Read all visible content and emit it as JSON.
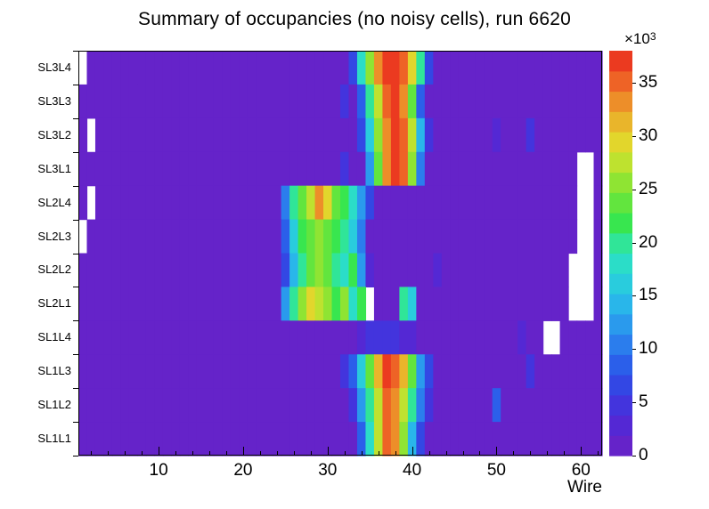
{
  "title": "Summary of occupancies (no noisy cells), run 6620",
  "axes": {
    "x_label": "Wire",
    "x_ticks": [
      10,
      20,
      30,
      40,
      50,
      60
    ]
  },
  "colorbar": {
    "ticks": [
      0,
      5,
      10,
      15,
      20,
      25,
      30,
      35
    ],
    "max": 38,
    "exponent_mantissa": "×10",
    "exponent_power": "3"
  },
  "chart_data": {
    "type": "heatmap",
    "title": "Summary of occupancies (no noisy cells), run 6620",
    "xlabel": "Wire",
    "x_range": [
      1,
      62
    ],
    "value_scale": 1000,
    "value_max": 38,
    "legend_position": "right-colorbar",
    "grid": false,
    "rows": [
      "SL3L4",
      "SL3L3",
      "SL3L2",
      "SL3L1",
      "SL2L4",
      "SL2L3",
      "SL2L2",
      "SL2L1",
      "SL1L4",
      "SL1L3",
      "SL1L2",
      "SL1L1"
    ],
    "palette": [
      {
        "t": 0.0,
        "color": "#6d20c4"
      },
      {
        "t": 0.1,
        "color": "#4b2ad9"
      },
      {
        "t": 0.2,
        "color": "#2b50e8"
      },
      {
        "t": 0.3,
        "color": "#2b8cee"
      },
      {
        "t": 0.4,
        "color": "#28c4e8"
      },
      {
        "t": 0.5,
        "color": "#2ce5bd"
      },
      {
        "t": 0.58,
        "color": "#39e648"
      },
      {
        "t": 0.68,
        "color": "#93e432"
      },
      {
        "t": 0.76,
        "color": "#e0e02c"
      },
      {
        "t": 0.85,
        "color": "#eda42b"
      },
      {
        "t": 0.93,
        "color": "#ee5f26"
      },
      {
        "t": 1.0,
        "color": "#e9251d"
      }
    ],
    "matrix": [
      [
        null,
        1,
        1,
        1,
        1,
        1,
        1,
        1,
        1,
        1,
        1,
        1,
        1,
        1,
        1,
        1,
        1,
        1,
        1,
        1,
        1,
        1,
        1,
        1,
        1,
        1,
        1,
        1,
        1,
        1,
        1,
        1,
        6,
        18,
        26,
        33,
        37,
        37,
        36,
        30,
        20,
        6,
        1,
        1,
        1,
        1,
        1,
        1,
        1,
        1,
        1,
        1,
        1,
        1,
        1,
        1,
        1,
        1,
        1,
        1,
        1,
        1
      ],
      [
        1,
        1,
        1,
        1,
        1,
        1,
        1,
        1,
        1,
        1,
        1,
        1,
        1,
        1,
        1,
        1,
        1,
        1,
        1,
        1,
        1,
        1,
        1,
        1,
        1,
        1,
        1,
        1,
        1,
        1,
        1,
        4,
        1,
        8,
        20,
        28,
        36,
        37,
        33,
        24,
        8,
        1,
        1,
        1,
        1,
        1,
        1,
        1,
        1,
        1,
        1,
        1,
        1,
        1,
        1,
        1,
        1,
        1,
        1,
        1,
        1,
        1
      ],
      [
        1,
        null,
        1,
        1,
        1,
        1,
        1,
        1,
        1,
        1,
        1,
        1,
        1,
        1,
        1,
        1,
        1,
        1,
        1,
        1,
        1,
        1,
        1,
        1,
        1,
        1,
        1,
        1,
        1,
        1,
        1,
        1,
        1,
        6,
        16,
        26,
        34,
        37,
        36,
        28,
        14,
        5,
        1,
        1,
        1,
        1,
        1,
        1,
        1,
        3,
        1,
        1,
        1,
        4,
        1,
        1,
        1,
        1,
        1,
        1,
        1,
        1
      ],
      [
        1,
        1,
        1,
        1,
        1,
        1,
        1,
        1,
        1,
        1,
        1,
        1,
        1,
        1,
        1,
        1,
        1,
        1,
        1,
        1,
        1,
        1,
        1,
        1,
        1,
        1,
        1,
        1,
        1,
        1,
        1,
        4,
        1,
        1,
        12,
        24,
        33,
        37,
        36,
        26,
        10,
        1,
        1,
        1,
        1,
        1,
        1,
        1,
        1,
        1,
        1,
        1,
        1,
        1,
        1,
        1,
        1,
        1,
        1,
        null,
        null,
        1
      ],
      [
        1,
        null,
        1,
        1,
        1,
        1,
        1,
        1,
        1,
        1,
        1,
        1,
        1,
        1,
        1,
        1,
        1,
        1,
        1,
        1,
        1,
        1,
        1,
        1,
        10,
        20,
        24,
        28,
        33,
        30,
        24,
        22,
        18,
        12,
        6,
        1,
        1,
        1,
        1,
        1,
        1,
        1,
        1,
        1,
        1,
        1,
        1,
        1,
        1,
        1,
        1,
        1,
        1,
        1,
        1,
        1,
        1,
        1,
        1,
        null,
        null,
        1
      ],
      [
        null,
        1,
        1,
        1,
        1,
        1,
        1,
        1,
        1,
        1,
        1,
        1,
        1,
        1,
        1,
        1,
        1,
        1,
        1,
        1,
        1,
        1,
        1,
        1,
        8,
        16,
        22,
        24,
        26,
        24,
        22,
        20,
        16,
        10,
        1,
        1,
        1,
        1,
        1,
        1,
        1,
        1,
        1,
        1,
        1,
        1,
        1,
        1,
        1,
        1,
        1,
        1,
        1,
        1,
        1,
        1,
        1,
        1,
        1,
        null,
        null,
        1
      ],
      [
        1,
        1,
        1,
        1,
        1,
        1,
        1,
        1,
        1,
        1,
        1,
        1,
        1,
        1,
        1,
        1,
        1,
        1,
        1,
        1,
        1,
        1,
        1,
        1,
        6,
        14,
        20,
        24,
        26,
        24,
        20,
        18,
        22,
        12,
        3,
        1,
        1,
        1,
        1,
        1,
        1,
        1,
        3,
        1,
        1,
        1,
        1,
        1,
        1,
        1,
        1,
        1,
        1,
        1,
        1,
        1,
        1,
        1,
        null,
        null,
        null,
        1
      ],
      [
        1,
        1,
        1,
        1,
        1,
        1,
        1,
        1,
        1,
        1,
        1,
        1,
        1,
        1,
        1,
        1,
        1,
        1,
        1,
        1,
        1,
        1,
        1,
        1,
        12,
        20,
        26,
        30,
        28,
        26,
        22,
        26,
        18,
        22,
        null,
        1,
        1,
        1,
        20,
        16,
        1,
        1,
        1,
        1,
        1,
        1,
        1,
        1,
        1,
        1,
        1,
        1,
        1,
        1,
        1,
        1,
        1,
        1,
        null,
        null,
        null,
        1
      ],
      [
        1,
        1,
        1,
        1,
        1,
        1,
        1,
        1,
        1,
        1,
        1,
        1,
        1,
        1,
        1,
        1,
        1,
        1,
        1,
        1,
        1,
        1,
        1,
        1,
        1,
        1,
        1,
        1,
        1,
        1,
        1,
        1,
        1,
        3,
        4,
        5,
        5,
        4,
        3,
        3,
        1,
        1,
        1,
        1,
        1,
        1,
        1,
        1,
        1,
        1,
        1,
        1,
        3,
        1,
        1,
        null,
        null,
        1,
        1,
        1,
        1,
        1
      ],
      [
        1,
        1,
        1,
        1,
        1,
        1,
        1,
        1,
        1,
        1,
        1,
        1,
        1,
        1,
        1,
        1,
        1,
        1,
        1,
        1,
        1,
        1,
        1,
        1,
        1,
        1,
        1,
        1,
        1,
        1,
        1,
        4,
        8,
        16,
        24,
        32,
        37,
        36,
        32,
        24,
        12,
        6,
        1,
        1,
        1,
        1,
        1,
        1,
        1,
        1,
        1,
        1,
        1,
        4,
        1,
        1,
        1,
        1,
        1,
        1,
        1,
        1
      ],
      [
        1,
        1,
        1,
        1,
        1,
        1,
        1,
        1,
        1,
        1,
        1,
        1,
        1,
        1,
        1,
        1,
        1,
        1,
        1,
        1,
        1,
        1,
        1,
        1,
        1,
        1,
        1,
        1,
        1,
        1,
        1,
        1,
        5,
        12,
        20,
        28,
        35,
        34,
        28,
        20,
        10,
        5,
        1,
        1,
        1,
        1,
        1,
        1,
        1,
        8,
        1,
        1,
        1,
        1,
        1,
        1,
        1,
        1,
        1,
        1,
        1,
        1
      ],
      [
        1,
        1,
        1,
        1,
        1,
        1,
        1,
        1,
        1,
        1,
        1,
        1,
        1,
        1,
        1,
        1,
        1,
        1,
        1,
        1,
        1,
        1,
        1,
        1,
        1,
        1,
        1,
        1,
        1,
        1,
        1,
        1,
        1,
        8,
        18,
        28,
        35,
        33,
        26,
        14,
        6,
        1,
        1,
        1,
        1,
        1,
        1,
        1,
        1,
        1,
        1,
        1,
        1,
        1,
        1,
        1,
        1,
        1,
        1,
        1,
        1,
        1
      ]
    ]
  }
}
